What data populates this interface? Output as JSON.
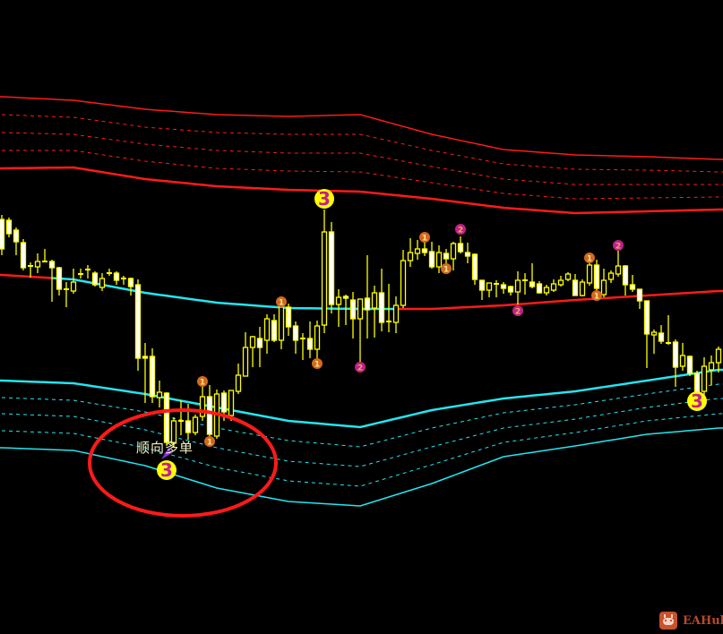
{
  "chart_data": {
    "type": "candlestick",
    "title": "",
    "xlabel": "",
    "ylabel": "",
    "ylim": [
      100,
      700
    ],
    "grid": false,
    "colors": {
      "background": "#000000",
      "candle": "#ffff00",
      "candle_bear_fill": "#ffffff",
      "upper_band": "#ff1a1a",
      "lower_band": "#22e6f0",
      "mid_up": "#22e6f0",
      "mid_down": "#ff1a1a",
      "marker_1": "#d2691e",
      "marker_2": "#c0208a",
      "marker_3": "#ffff00",
      "marker_text_3": "#c0208a",
      "highlight_ellipse": "#ff1a1a"
    },
    "candles_ohlc": [
      [
        455,
        460,
        415,
        422
      ],
      [
        454,
        457,
        435,
        439
      ],
      [
        443,
        446,
        415,
        430
      ],
      [
        429,
        433,
        398,
        401
      ],
      [
        403,
        407,
        390,
        403
      ],
      [
        402,
        417,
        395,
        408
      ],
      [
        408,
        422,
        407,
        408
      ],
      [
        408,
        410,
        363,
        401
      ],
      [
        401,
        402,
        370,
        377
      ],
      [
        377,
        385,
        357,
        377
      ],
      [
        375,
        400,
        372,
        385
      ],
      [
        394,
        400,
        389,
        394
      ],
      [
        399,
        404,
        389,
        399
      ],
      [
        395,
        397,
        380,
        382
      ],
      [
        379,
        395,
        375,
        389
      ],
      [
        395,
        400,
        392,
        395
      ],
      [
        395,
        397,
        382,
        387
      ],
      [
        389,
        392,
        382,
        389
      ],
      [
        389,
        390,
        370,
        380
      ],
      [
        382,
        388,
        286,
        300
      ],
      [
        302,
        317,
        250,
        300
      ],
      [
        302,
        311,
        250,
        257
      ],
      [
        256,
        275,
        245,
        262
      ],
      [
        261,
        262,
        202,
        206
      ],
      [
        205,
        234,
        200,
        230
      ],
      [
        230,
        253,
        214,
        230
      ],
      [
        230,
        249,
        209,
        217
      ],
      [
        217,
        237,
        214,
        234
      ],
      [
        235,
        276,
        230,
        257
      ],
      [
        257,
        270,
        205,
        215
      ],
      [
        213,
        265,
        210,
        260
      ],
      [
        261,
        264,
        230,
        240
      ],
      [
        236,
        264,
        230,
        264
      ],
      [
        263,
        294,
        260,
        281
      ],
      [
        280,
        329,
        280,
        312
      ],
      [
        312,
        325,
        290,
        324
      ],
      [
        322,
        335,
        290,
        312
      ],
      [
        320,
        349,
        305,
        344
      ],
      [
        342,
        349,
        318,
        320
      ],
      [
        320,
        363,
        310,
        357
      ],
      [
        357,
        361,
        325,
        335
      ],
      [
        336,
        341,
        305,
        320
      ],
      [
        322,
        328,
        298,
        322
      ],
      [
        322,
        341,
        300,
        310
      ],
      [
        310,
        342,
        295,
        336
      ],
      [
        337,
        466,
        328,
        441
      ],
      [
        441,
        452,
        350,
        360
      ],
      [
        360,
        377,
        335,
        368
      ],
      [
        369,
        371,
        337,
        367
      ],
      [
        365,
        374,
        322,
        344
      ],
      [
        344,
        366,
        295,
        366
      ],
      [
        367,
        415,
        322,
        354
      ],
      [
        356,
        381,
        323,
        373
      ],
      [
        373,
        400,
        330,
        340
      ],
      [
        341,
        383,
        329,
        341
      ],
      [
        340,
        369,
        328,
        359
      ],
      [
        359,
        421,
        356,
        409
      ],
      [
        409,
        434,
        402,
        418
      ],
      [
        417,
        432,
        410,
        422
      ],
      [
        422,
        430,
        414,
        418
      ],
      [
        419,
        430,
        400,
        402
      ],
      [
        402,
        426,
        395,
        418
      ],
      [
        417,
        422,
        398,
        411
      ],
      [
        411,
        430,
        398,
        428
      ],
      [
        428,
        436,
        417,
        419
      ],
      [
        418,
        429,
        406,
        414
      ],
      [
        416,
        417,
        382,
        388
      ],
      [
        387,
        387,
        365,
        376
      ],
      [
        376,
        384,
        368,
        384
      ],
      [
        383,
        387,
        368,
        383
      ],
      [
        382,
        385,
        372,
        378
      ],
      [
        380,
        381,
        370,
        374
      ],
      [
        374,
        397,
        360,
        387
      ],
      [
        387,
        395,
        371,
        387
      ],
      [
        385,
        406,
        378,
        380
      ],
      [
        383,
        386,
        372,
        373
      ],
      [
        373,
        382,
        370,
        379
      ],
      [
        376,
        388,
        374,
        383
      ],
      [
        382,
        392,
        380,
        387
      ],
      [
        388,
        396,
        386,
        394
      ],
      [
        387,
        394,
        370,
        370
      ],
      [
        370,
        388,
        369,
        385
      ],
      [
        384,
        411,
        381,
        404
      ],
      [
        404,
        410,
        372,
        378
      ],
      [
        371,
        400,
        368,
        387
      ],
      [
        388,
        398,
        384,
        395
      ],
      [
        394,
        420,
        391,
        403
      ],
      [
        403,
        404,
        370,
        382
      ],
      [
        382,
        393,
        374,
        377
      ],
      [
        377,
        377,
        355,
        364
      ],
      [
        364,
        364,
        289,
        327
      ],
      [
        326,
        332,
        305,
        329
      ],
      [
        328,
        337,
        316,
        319
      ],
      [
        317,
        348,
        315,
        317
      ],
      [
        318,
        321,
        268,
        290
      ],
      [
        291,
        317,
        286,
        303
      ],
      [
        302,
        303,
        280,
        283
      ],
      [
        283,
        286,
        255,
        260
      ],
      [
        263,
        301,
        259,
        291
      ],
      [
        287,
        303,
        270,
        295
      ],
      [
        295,
        313,
        284,
        310
      ]
    ],
    "band_sample_candle_index": [
      0,
      10,
      20,
      30,
      40,
      50,
      60,
      70,
      80,
      90,
      100
    ],
    "upper_band": {
      "outer": [
        592,
        588,
        578,
        572,
        570,
        572,
        550,
        533,
        527,
        525,
        522
      ],
      "level_1": [
        572,
        569,
        558,
        552,
        550,
        550,
        532,
        517,
        511,
        510,
        508
      ],
      "level_2": [
        552,
        550,
        539,
        532,
        529,
        529,
        514,
        500,
        494,
        494,
        494
      ],
      "level_3": [
        532,
        532,
        520,
        512,
        509,
        508,
        496,
        484,
        478,
        479,
        480
      ],
      "inner": [
        512,
        513,
        500,
        492,
        488,
        486,
        478,
        468,
        462,
        464,
        466
      ]
    },
    "mid_line": {
      "values": [
        393,
        388,
        373,
        362,
        356,
        355,
        355,
        359,
        365,
        370,
        375
      ],
      "color_segments": [
        {
          "from_index": 0,
          "to_index": 7,
          "trend": "down"
        },
        {
          "from_index": 7,
          "to_index": 55,
          "trend": "up"
        },
        {
          "from_index": 55,
          "to_index": 100,
          "trend": "down"
        }
      ]
    },
    "lower_band": {
      "inner": [
        275,
        272,
        260,
        245,
        230,
        223,
        242,
        255,
        263,
        275,
        287
      ],
      "level_1": [
        256,
        253,
        240,
        222,
        208,
        201,
        222,
        239,
        248,
        260,
        271
      ],
      "level_2": [
        238,
        235,
        220,
        200,
        185,
        179,
        201,
        222,
        232,
        245,
        255
      ],
      "level_3": [
        219,
        216,
        200,
        178,
        163,
        157,
        181,
        206,
        217,
        230,
        238
      ],
      "outer": [
        200,
        197,
        180,
        155,
        140,
        135,
        160,
        190,
        202,
        215,
        222
      ]
    },
    "signal_markers": [
      {
        "label": "3",
        "index": 45,
        "price": 478
      },
      {
        "label": "3",
        "index": 23,
        "price": 175
      },
      {
        "label": "3",
        "index": 97,
        "price": 252
      },
      {
        "label": "1",
        "index": 28,
        "price": 274
      },
      {
        "label": "1",
        "index": 29,
        "price": 207
      },
      {
        "label": "1",
        "index": 39,
        "price": 363
      },
      {
        "label": "1",
        "index": 44,
        "price": 294
      },
      {
        "label": "1",
        "index": 59,
        "price": 435
      },
      {
        "label": "1",
        "index": 62,
        "price": 400
      },
      {
        "label": "1",
        "index": 82,
        "price": 412
      },
      {
        "label": "1",
        "index": 83,
        "price": 370
      },
      {
        "label": "2",
        "index": 50,
        "price": 290
      },
      {
        "label": "2",
        "index": 64,
        "price": 444
      },
      {
        "label": "2",
        "index": 72,
        "price": 353
      },
      {
        "label": "2",
        "index": 86,
        "price": 426
      }
    ],
    "annotation": {
      "text": "顺向多单",
      "index": 23,
      "arrow_color": "#8a2be2"
    }
  },
  "watermark": {
    "text": "EAHub",
    "icon": "robot-icon",
    "color": "#c9522d"
  }
}
